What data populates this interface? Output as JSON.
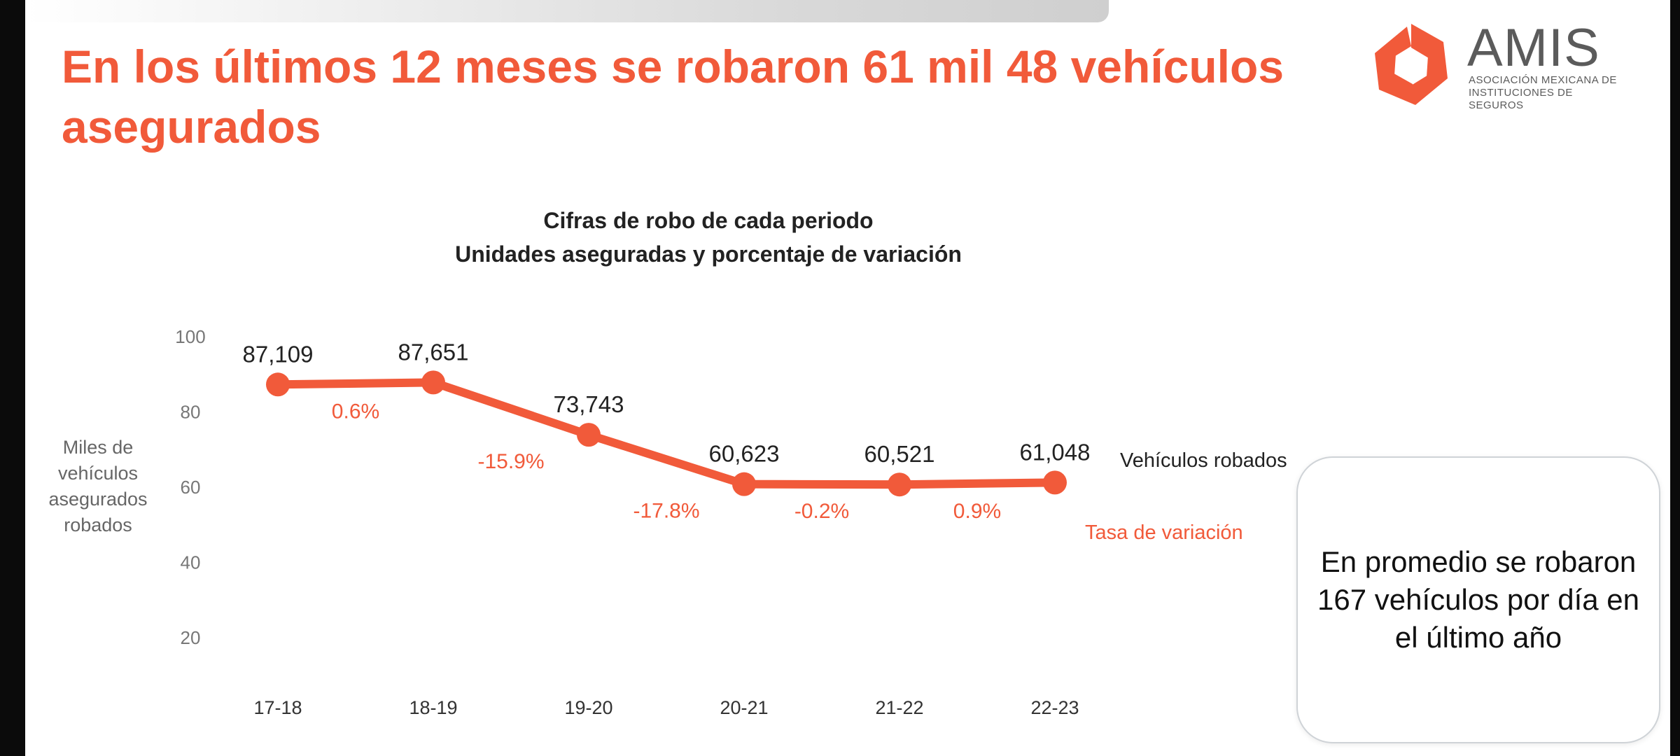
{
  "header": {
    "title": "En los últimos 12 meses se robaron 61 mil 48 vehículos asegurados"
  },
  "logo": {
    "name": "AMIS",
    "subtitle_line1": "ASOCIACIÓN MEXICANA DE",
    "subtitle_line2": "INSTITUCIONES DE SEGUROS",
    "colors": {
      "brand": "#f15a3a",
      "text": "#5b5b5b"
    }
  },
  "chart_data": {
    "type": "line",
    "title": "Cifras de robo de cada periodo",
    "subtitle": "Unidades aseguradas y porcentaje de variación",
    "ylabel": "Miles de vehículos asegurados robados",
    "ylabel_lines": [
      "Miles de",
      "vehículos",
      "asegurados",
      "robados"
    ],
    "categories": [
      "17-18",
      "18-19",
      "19-20",
      "20-21",
      "21-22",
      "22-23"
    ],
    "series": [
      {
        "name": "Vehículos robados",
        "values": [
          87.109,
          87.651,
          73.743,
          60.623,
          60.521,
          61.048
        ],
        "labels": [
          "87,109",
          "87,651",
          "73,743",
          "60,623",
          "60,521",
          "61,048"
        ],
        "color": "#f15a3a"
      }
    ],
    "variation": {
      "name": "Tasa de variación",
      "values": [
        "0.6%",
        "-15.9%",
        "-17.8%",
        "-0.2%",
        "0.9%"
      ],
      "color": "#f15a3a"
    },
    "yticks": [
      "100",
      "80",
      "60",
      "40",
      "20"
    ],
    "grid": false
  },
  "callout": {
    "text": "En promedio se robaron 167 vehículos por día en el último año"
  }
}
